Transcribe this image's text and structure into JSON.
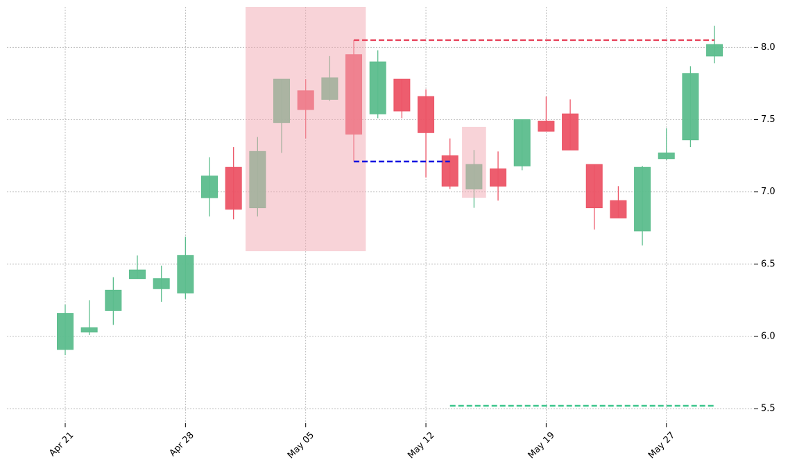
{
  "chart_data": {
    "type": "candlestick",
    "categories": [
      "Apr 21",
      null,
      null,
      null,
      null,
      "Apr 28",
      null,
      null,
      null,
      null,
      "May 05",
      null,
      null,
      null,
      null,
      "May 12",
      null,
      null,
      null,
      null,
      "May 19",
      null,
      null,
      null,
      null,
      "May 27",
      null,
      null
    ],
    "open": [
      5.91,
      6.03,
      6.18,
      6.4,
      6.33,
      6.3,
      6.96,
      7.17,
      6.89,
      7.48,
      7.7,
      7.64,
      7.95,
      7.54,
      7.78,
      7.66,
      7.25,
      7.02,
      7.16,
      7.18,
      7.49,
      7.54,
      7.19,
      6.94,
      6.73,
      7.23,
      7.36,
      7.94
    ],
    "high": [
      6.22,
      6.25,
      6.41,
      6.56,
      6.49,
      6.69,
      7.24,
      7.31,
      7.38,
      7.78,
      7.78,
      7.94,
      8.05,
      7.98,
      7.78,
      7.71,
      7.37,
      7.29,
      7.28,
      7.5,
      7.66,
      7.64,
      7.19,
      7.04,
      7.18,
      7.44,
      7.87,
      8.15
    ],
    "low": [
      5.87,
      6.01,
      6.08,
      6.4,
      6.24,
      6.26,
      6.83,
      6.81,
      6.83,
      7.27,
      7.37,
      7.63,
      7.21,
      7.51,
      7.51,
      7.1,
      7.02,
      6.89,
      6.94,
      7.15,
      7.42,
      7.29,
      6.74,
      6.82,
      6.63,
      7.22,
      7.31,
      7.89
    ],
    "close": [
      6.16,
      6.06,
      6.32,
      6.46,
      6.4,
      6.56,
      7.11,
      6.88,
      7.28,
      7.78,
      7.57,
      7.79,
      7.4,
      7.9,
      7.56,
      7.41,
      7.04,
      7.19,
      7.04,
      7.5,
      7.42,
      7.29,
      6.89,
      6.82,
      7.17,
      7.27,
      7.82,
      8.02
    ],
    "up_color": "#5cbd8d",
    "down_color": "#ec5466",
    "ylim": [
      5.4,
      8.28
    ],
    "yticks": [
      5.5,
      {
        "value": 6,
        "label": "6.0"
      },
      6.5,
      {
        "value": 7,
        "label": "7.0"
      },
      7.5,
      {
        "value": 8,
        "label": "8.0"
      }
    ],
    "grid": true,
    "highlights": [
      {
        "first": 8,
        "last": 12,
        "low": 6.59,
        "high": 8.28,
        "color": "#f2a7b2"
      },
      {
        "first": 17,
        "last": 17,
        "low": 6.96,
        "high": 7.45,
        "color": "#f2a7b2"
      }
    ],
    "hlines": [
      {
        "value": 8.05,
        "from": 12,
        "to": 27,
        "color": "#e8475f"
      },
      {
        "value": 7.21,
        "from": 12,
        "to": 16,
        "color": "#1010e0"
      },
      {
        "value": 5.52,
        "from": 16,
        "to": 27,
        "color": "#3cc58c"
      }
    ]
  }
}
